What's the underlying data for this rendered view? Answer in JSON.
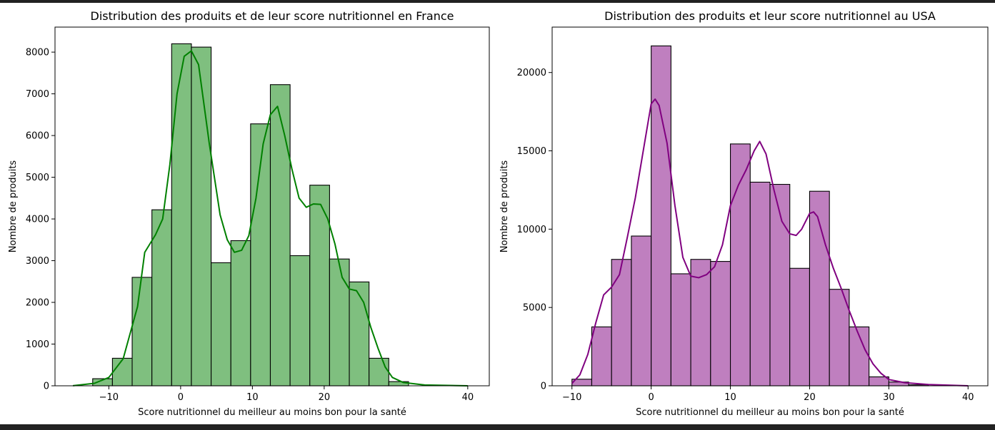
{
  "chart_data": [
    {
      "type": "histogram",
      "title": "Distribution des produits et de leur score nutritionnel en France",
      "xlabel": "Score nutritionnel du meilleur au moins bon pour la santé",
      "ylabel": "Nombre de produits",
      "xlim": [
        -17.5,
        43
      ],
      "ylim": [
        0,
        8600
      ],
      "xticks": [
        -10,
        0,
        10,
        20,
        40
      ],
      "yticks": [
        0,
        1000,
        2000,
        3000,
        4000,
        5000,
        6000,
        7000,
        8000
      ],
      "bar_color": "#7fbf7f",
      "kde_color": "#008000",
      "bin_width": 2.75,
      "bin_edges_start": -12.25,
      "values": [
        170,
        660,
        2600,
        4220,
        8200,
        8120,
        2950,
        3480,
        6280,
        7220,
        3120,
        4810,
        3040,
        2490,
        660,
        100
      ],
      "kde": [
        [
          -15,
          3
        ],
        [
          -12,
          60
        ],
        [
          -10,
          200
        ],
        [
          -8,
          650
        ],
        [
          -6,
          1900
        ],
        [
          -5,
          3200
        ],
        [
          -3.5,
          3620
        ],
        [
          -2.5,
          4000
        ],
        [
          -1.5,
          5300
        ],
        [
          -0.5,
          7000
        ],
        [
          0.5,
          7900
        ],
        [
          1.5,
          8030
        ],
        [
          2.5,
          7700
        ],
        [
          4,
          5800
        ],
        [
          5.5,
          4100
        ],
        [
          6.5,
          3500
        ],
        [
          7.5,
          3200
        ],
        [
          8.5,
          3250
        ],
        [
          9.5,
          3600
        ],
        [
          10.5,
          4500
        ],
        [
          11.5,
          5800
        ],
        [
          12.5,
          6500
        ],
        [
          13.5,
          6700
        ],
        [
          14.5,
          6000
        ],
        [
          15.5,
          5200
        ],
        [
          16.5,
          4500
        ],
        [
          17.5,
          4280
        ],
        [
          18.5,
          4360
        ],
        [
          19.5,
          4350
        ],
        [
          20.5,
          4000
        ],
        [
          21.5,
          3400
        ],
        [
          22.5,
          2600
        ],
        [
          23.5,
          2320
        ],
        [
          24.5,
          2280
        ],
        [
          25.5,
          2000
        ],
        [
          26.5,
          1400
        ],
        [
          27.5,
          900
        ],
        [
          28.5,
          450
        ],
        [
          29.5,
          200
        ],
        [
          31,
          80
        ],
        [
          34,
          20
        ],
        [
          40,
          0
        ]
      ]
    },
    {
      "type": "histogram",
      "title": "Distribution des produits et leur score nutritionnel au USA",
      "xlabel": "Score nutritionnel du meilleur au moins bon pour la santé",
      "ylabel": "Nombre de produits",
      "xlim": [
        -12.5,
        42.5
      ],
      "ylim": [
        0,
        22900
      ],
      "xticks": [
        -10,
        0,
        10,
        20,
        30,
        40
      ],
      "yticks": [
        0,
        5000,
        10000,
        15000,
        20000
      ],
      "bar_color": "#bf7fbf",
      "kde_color": "#800080",
      "bin_width": 2.5,
      "bin_edges_start": -10,
      "values": [
        420,
        3760,
        8070,
        9560,
        21700,
        7150,
        8070,
        7940,
        15440,
        13000,
        12860,
        7500,
        12420,
        6160,
        3760,
        570,
        240,
        60
      ],
      "kde": [
        [
          -10,
          150
        ],
        [
          -9,
          700
        ],
        [
          -8,
          2000
        ],
        [
          -7,
          4000
        ],
        [
          -6,
          5800
        ],
        [
          -5,
          6300
        ],
        [
          -4,
          7100
        ],
        [
          -3,
          9500
        ],
        [
          -2,
          12000
        ],
        [
          -1,
          15000
        ],
        [
          0,
          18000
        ],
        [
          0.5,
          18300
        ],
        [
          1,
          17900
        ],
        [
          2,
          15500
        ],
        [
          3,
          11500
        ],
        [
          4,
          8200
        ],
        [
          5,
          7000
        ],
        [
          6,
          6900
        ],
        [
          7,
          7100
        ],
        [
          8,
          7600
        ],
        [
          9,
          9000
        ],
        [
          10,
          11500
        ],
        [
          11,
          12800
        ],
        [
          12,
          13800
        ],
        [
          13,
          15000
        ],
        [
          13.7,
          15600
        ],
        [
          14.5,
          14800
        ],
        [
          15.5,
          12500
        ],
        [
          16.5,
          10500
        ],
        [
          17.5,
          9700
        ],
        [
          18.3,
          9600
        ],
        [
          19,
          10000
        ],
        [
          20,
          11000
        ],
        [
          20.5,
          11100
        ],
        [
          21,
          10800
        ],
        [
          22,
          9000
        ],
        [
          23,
          7500
        ],
        [
          24,
          6200
        ],
        [
          25,
          4800
        ],
        [
          26,
          3500
        ],
        [
          27,
          2300
        ],
        [
          28,
          1400
        ],
        [
          29,
          800
        ],
        [
          30,
          400
        ],
        [
          32,
          200
        ],
        [
          35,
          80
        ],
        [
          40,
          0
        ]
      ]
    }
  ]
}
